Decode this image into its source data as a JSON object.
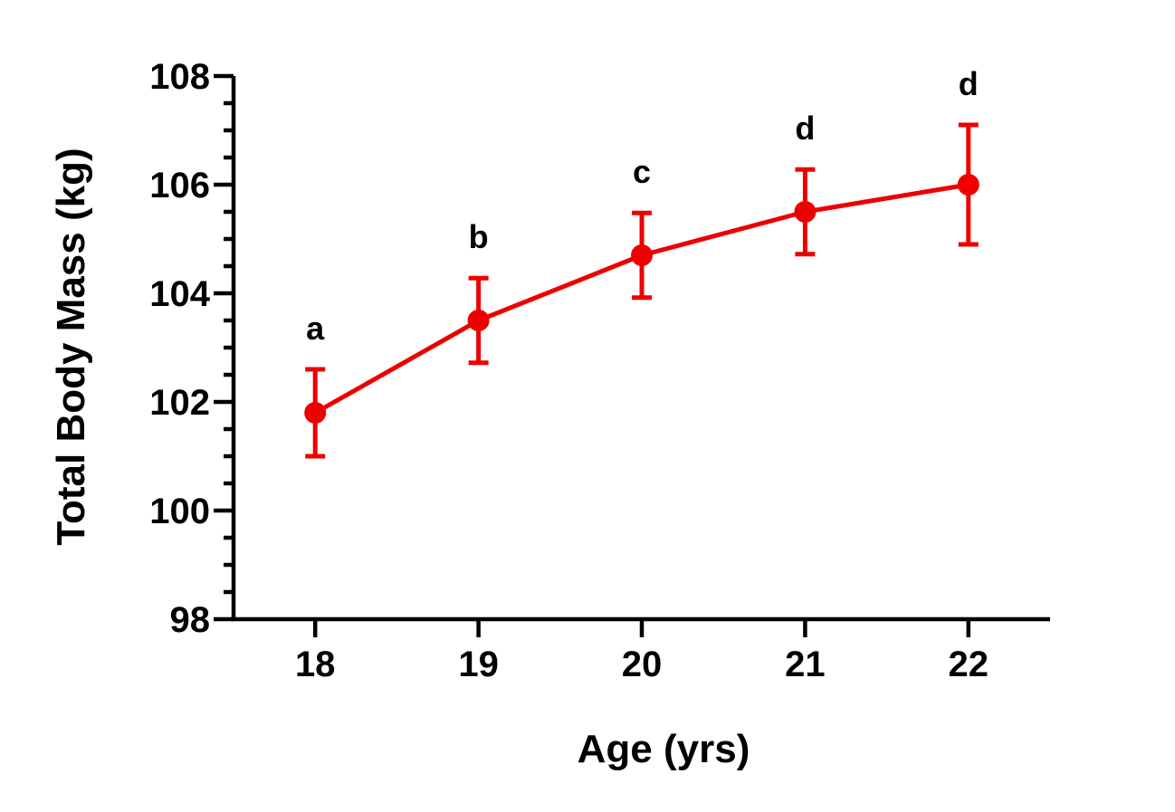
{
  "chart_data": {
    "type": "line",
    "title": "",
    "xlabel": "Age (yrs)",
    "ylabel": "Total Body Mass (kg)",
    "xlim": [
      17.5,
      22.5
    ],
    "ylim": [
      98,
      108
    ],
    "x_ticks": [
      18,
      19,
      20,
      21,
      22
    ],
    "x_tick_labels": [
      "18",
      "19",
      "20",
      "21",
      "22"
    ],
    "y_ticks": [
      98,
      100,
      102,
      104,
      106,
      108
    ],
    "y_tick_labels": [
      "98",
      "100",
      "102",
      "104",
      "106",
      "108"
    ],
    "y_minor_step": 0.5,
    "grid": false,
    "legend": "none",
    "color": "#ee0000",
    "series": [
      {
        "x": [
          18,
          19,
          20,
          21,
          22
        ],
        "values": [
          101.8,
          103.5,
          104.7,
          105.5,
          106.0
        ],
        "error": [
          0.8,
          0.78,
          0.78,
          0.78,
          1.1
        ],
        "annotations": [
          "a",
          "b",
          "c",
          "d",
          "d"
        ]
      }
    ]
  }
}
